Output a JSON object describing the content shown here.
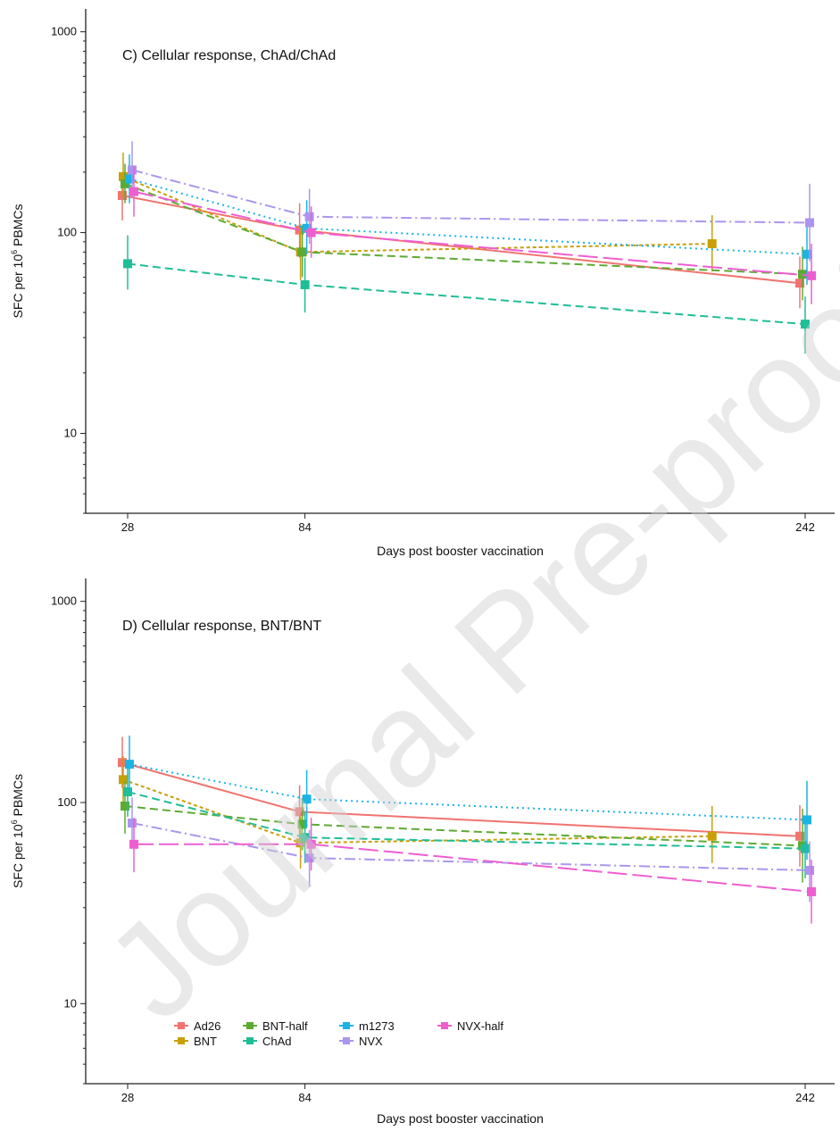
{
  "watermark": "Journal Pre-proof",
  "series_styles": {
    "Ad26": {
      "color": "#f07470",
      "dash": ""
    },
    "BNT": {
      "color": "#c89f08",
      "dash": "4,3"
    },
    "BNT-half": {
      "color": "#5daa33",
      "dash": "9,5"
    },
    "ChAd": {
      "color": "#1fbe96",
      "dash": "9,5"
    },
    "m1273": {
      "color": "#1ab4e4",
      "dash": "2,4"
    },
    "NVX": {
      "color": "#ab95ef",
      "dash": "12,4,2,4"
    },
    "NVX-half": {
      "color": "#ee5ed1",
      "dash": "22,6"
    }
  },
  "legend": {
    "row1": [
      "Ad26",
      "BNT-half",
      "m1273",
      "NVX-half"
    ],
    "row2": [
      "BNT",
      "ChAd",
      "NVX"
    ]
  },
  "chart_data": [
    {
      "type": "line",
      "title": "C) Cellular response, ChAd/ChAd",
      "xlabel": "Days post booster vaccination",
      "ylabel": "SFC per 10^6 PBMCs",
      "x_ticks": [
        28,
        84,
        242
      ],
      "y_ticks": [
        10,
        100,
        1000
      ],
      "y_scale": "log",
      "ylim": [
        4,
        1300
      ],
      "series": [
        {
          "name": "Ad26",
          "x": [
            28,
            84,
            242
          ],
          "y": [
            153,
            103,
            56
          ],
          "err_low": [
            115,
            75,
            42
          ],
          "err_high": [
            200,
            140,
            76
          ]
        },
        {
          "name": "BNT",
          "x": [
            28,
            84,
            214
          ],
          "y": [
            190,
            80,
            88
          ],
          "err_low": [
            150,
            58,
            64
          ],
          "err_high": [
            250,
            110,
            122
          ]
        },
        {
          "name": "BNT-half",
          "x": [
            28,
            84,
            242
          ],
          "y": [
            175,
            80,
            62
          ],
          "err_low": [
            140,
            60,
            46
          ],
          "err_high": [
            220,
            108,
            85
          ]
        },
        {
          "name": "ChAd",
          "x": [
            28,
            84,
            242
          ],
          "y": [
            70,
            55,
            35
          ],
          "err_low": [
            52,
            40,
            25
          ],
          "err_high": [
            97,
            75,
            48
          ]
        },
        {
          "name": "m1273",
          "x": [
            28,
            84,
            242
          ],
          "y": [
            185,
            105,
            78
          ],
          "err_low": [
            140,
            78,
            55
          ],
          "err_high": [
            245,
            145,
            110
          ]
        },
        {
          "name": "NVX",
          "x": [
            28,
            84,
            242
          ],
          "y": [
            205,
            120,
            112
          ],
          "err_low": [
            150,
            88,
            72
          ],
          "err_high": [
            285,
            165,
            175
          ]
        },
        {
          "name": "NVX-half",
          "x": [
            28,
            84,
            242
          ],
          "y": [
            160,
            100,
            61
          ],
          "err_low": [
            120,
            75,
            44
          ],
          "err_high": [
            215,
            135,
            88
          ]
        }
      ]
    },
    {
      "type": "line",
      "title": "D) Cellular response, BNT/BNT",
      "xlabel": "Days post booster vaccination",
      "ylabel": "SFC per 10^6 PBMCs",
      "x_ticks": [
        28,
        84,
        242
      ],
      "y_ticks": [
        10,
        100,
        1000
      ],
      "y_scale": "log",
      "ylim": [
        4,
        1300
      ],
      "series": [
        {
          "name": "Ad26",
          "x": [
            28,
            84,
            242
          ],
          "y": [
            158,
            90,
            68
          ],
          "err_low": [
            118,
            66,
            48
          ],
          "err_high": [
            212,
            122,
            97
          ]
        },
        {
          "name": "BNT",
          "x": [
            28,
            84,
            214
          ],
          "y": [
            130,
            63,
            68
          ],
          "err_low": [
            100,
            47,
            50
          ],
          "err_high": [
            170,
            85,
            96
          ]
        },
        {
          "name": "BNT-half",
          "x": [
            28,
            84,
            242
          ],
          "y": [
            96,
            78,
            61
          ],
          "err_low": [
            70,
            58,
            40
          ],
          "err_high": [
            128,
            105,
            93
          ]
        },
        {
          "name": "ChAd",
          "x": [
            28,
            84,
            242
          ],
          "y": [
            113,
            67,
            59
          ],
          "err_low": [
            85,
            50,
            42
          ],
          "err_high": [
            150,
            90,
            83
          ]
        },
        {
          "name": "m1273",
          "x": [
            28,
            84,
            242
          ],
          "y": [
            155,
            104,
            82
          ],
          "err_low": [
            112,
            75,
            52
          ],
          "err_high": [
            215,
            145,
            128
          ]
        },
        {
          "name": "NVX",
          "x": [
            28,
            84,
            242
          ],
          "y": [
            79,
            53,
            46
          ],
          "err_low": [
            60,
            38,
            32
          ],
          "err_high": [
            106,
            73,
            64
          ]
        },
        {
          "name": "NVX-half",
          "x": [
            28,
            84,
            242
          ],
          "y": [
            62,
            62,
            36
          ],
          "err_low": [
            45,
            46,
            25
          ],
          "err_high": [
            84,
            84,
            52
          ]
        }
      ]
    }
  ]
}
